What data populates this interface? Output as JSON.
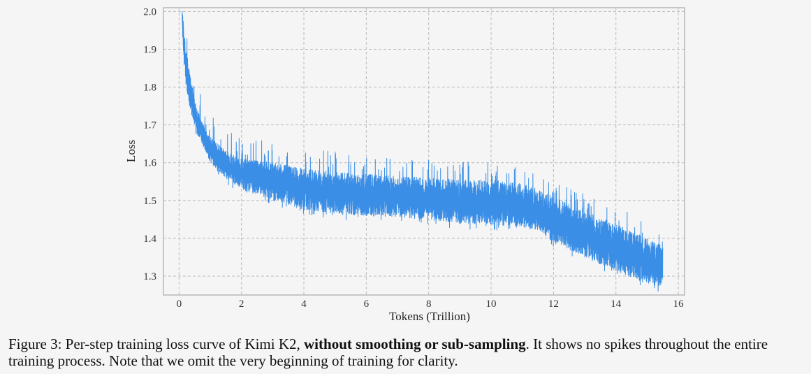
{
  "chart_data": {
    "type": "line",
    "xlabel": "Tokens (Trillion)",
    "ylabel": "Loss",
    "xlim": [
      -0.5,
      16.2
    ],
    "ylim": [
      1.25,
      2.01
    ],
    "xticks": [
      "0",
      "2",
      "4",
      "6",
      "8",
      "10",
      "12",
      "14",
      "16"
    ],
    "yticks": [
      "1.3",
      "1.4",
      "1.5",
      "1.6",
      "1.7",
      "1.8",
      "1.9",
      "2.0"
    ],
    "grid": true,
    "line_color": "#3a8ee6",
    "series": [
      {
        "x": [
          0.1,
          0.15,
          0.2,
          0.3,
          0.4,
          0.5,
          0.6,
          0.8,
          1.0,
          1.5,
          2.0,
          3.0,
          4.0,
          5.0,
          6.0,
          7.0,
          8.0,
          9.0,
          10.0,
          11.0,
          11.5,
          12.0,
          13.0,
          14.0,
          15.0,
          15.5
        ],
        "upper": [
          2.01,
          1.96,
          1.92,
          1.86,
          1.81,
          1.77,
          1.74,
          1.7,
          1.67,
          1.63,
          1.61,
          1.6,
          1.585,
          1.575,
          1.57,
          1.565,
          1.56,
          1.555,
          1.555,
          1.545,
          1.53,
          1.51,
          1.47,
          1.44,
          1.4,
          1.38
        ],
        "lower": [
          1.95,
          1.87,
          1.82,
          1.76,
          1.73,
          1.7,
          1.67,
          1.64,
          1.6,
          1.56,
          1.53,
          1.5,
          1.475,
          1.465,
          1.46,
          1.455,
          1.45,
          1.44,
          1.435,
          1.43,
          1.42,
          1.39,
          1.35,
          1.31,
          1.28,
          1.27
        ]
      }
    ]
  },
  "caption": {
    "prefix": "Figure 3: Per-step training loss curve of Kimi K2, ",
    "bold": "without smoothing or sub-sampling",
    "suffix": ". It shows no spikes throughout the entire training process. Note that we omit the very beginning of training for clarity."
  }
}
